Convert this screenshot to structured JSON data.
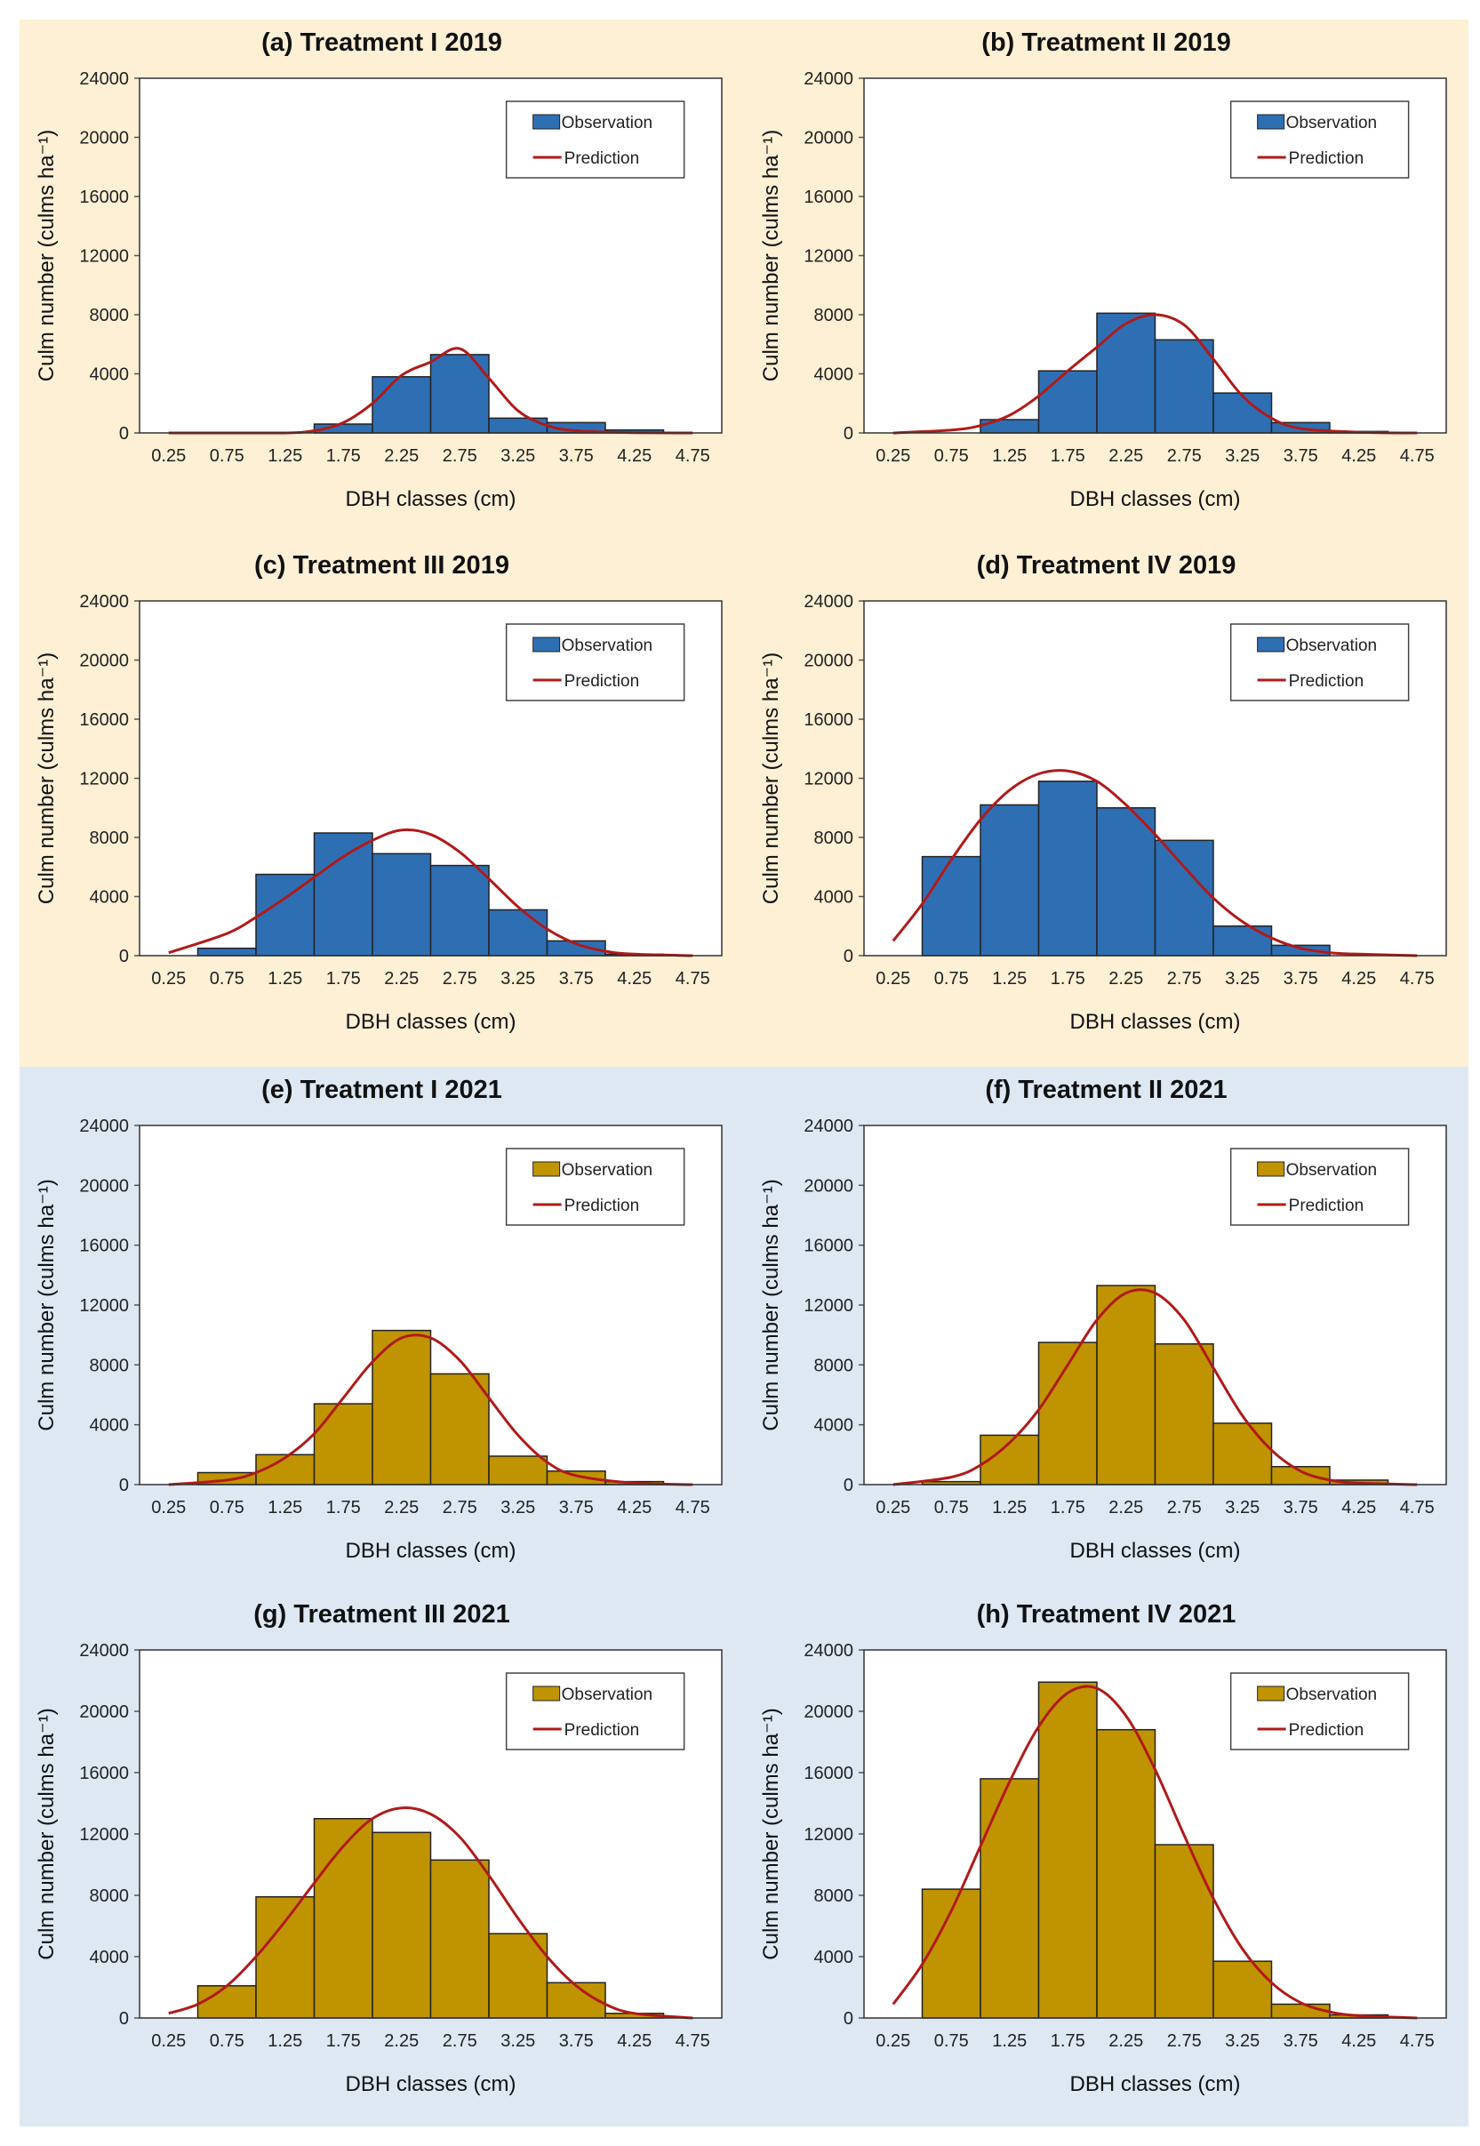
{
  "colors": {
    "bg_2019": "#fdf0d5",
    "bg_2021": "#dde8f3",
    "obs_2019": "#2e6fb4",
    "obs_2021": "#bf9400",
    "prediction": "#b01a1a"
  },
  "legend": {
    "observation": "Observation",
    "prediction": "Prediction"
  },
  "chart_data": [
    {
      "id": "a",
      "title": "(a) Treatment I 2019",
      "type": "bar",
      "xlabel": "DBH classes (cm)",
      "ylabel": "Culm number (culms ha⁻¹)",
      "ylim": [
        0,
        24000
      ],
      "yticks": [
        "0",
        "4000",
        "8000",
        "12000",
        "16000",
        "20000",
        "24000"
      ],
      "categories": [
        "0.25",
        "0.75",
        "1.25",
        "1.75",
        "2.25",
        "2.75",
        "3.25",
        "3.75",
        "4.25",
        "4.75"
      ],
      "series": [
        {
          "name": "Observation",
          "type": "bar",
          "values": [
            0,
            0,
            0,
            600,
            3800,
            5300,
            1000,
            700,
            200,
            0
          ]
        },
        {
          "name": "Prediction",
          "type": "line",
          "x": [
            0.25,
            0.75,
            1.25,
            1.5,
            1.75,
            2.0,
            2.25,
            2.5,
            2.75,
            3.0,
            3.25,
            3.5,
            3.75,
            4.25,
            4.75
          ],
          "values": [
            0,
            0,
            0,
            150,
            700,
            2000,
            3900,
            4800,
            5700,
            3700,
            1500,
            500,
            150,
            20,
            0
          ]
        }
      ]
    },
    {
      "id": "b",
      "title": "(b) Treatment II 2019",
      "type": "bar",
      "xlabel": "DBH classes (cm)",
      "ylabel": "Culm number (culms ha⁻¹)",
      "ylim": [
        0,
        24000
      ],
      "yticks": [
        "0",
        "4000",
        "8000",
        "12000",
        "16000",
        "20000",
        "24000"
      ],
      "categories": [
        "0.25",
        "0.75",
        "1.25",
        "1.75",
        "2.25",
        "2.75",
        "3.25",
        "3.75",
        "4.25",
        "4.75"
      ],
      "series": [
        {
          "name": "Observation",
          "type": "bar",
          "values": [
            0,
            0,
            900,
            4200,
            8100,
            6300,
            2700,
            700,
            100,
            0
          ]
        },
        {
          "name": "Prediction",
          "type": "line",
          "x": [
            0.25,
            0.75,
            1.0,
            1.25,
            1.5,
            1.75,
            2.0,
            2.25,
            2.5,
            2.75,
            3.0,
            3.25,
            3.5,
            3.75,
            4.25,
            4.75
          ],
          "values": [
            0,
            200,
            500,
            1200,
            2500,
            4200,
            5800,
            7400,
            8000,
            7300,
            5000,
            2500,
            1000,
            300,
            50,
            0
          ]
        }
      ]
    },
    {
      "id": "c",
      "title": "(c) Treatment III 2019",
      "type": "bar",
      "xlabel": "DBH classes (cm)",
      "ylabel": "Culm number (culms ha⁻¹)",
      "ylim": [
        0,
        24000
      ],
      "yticks": [
        "0",
        "4000",
        "8000",
        "12000",
        "16000",
        "20000",
        "24000"
      ],
      "categories": [
        "0.25",
        "0.75",
        "1.25",
        "1.75",
        "2.25",
        "2.75",
        "3.25",
        "3.75",
        "4.25",
        "4.75"
      ],
      "series": [
        {
          "name": "Observation",
          "type": "bar",
          "values": [
            0,
            500,
            5500,
            8300,
            6900,
            6100,
            3100,
            1000,
            100,
            0
          ]
        },
        {
          "name": "Prediction",
          "type": "line",
          "x": [
            0.25,
            0.75,
            1.0,
            1.25,
            1.5,
            1.75,
            2.0,
            2.25,
            2.5,
            2.75,
            3.0,
            3.25,
            3.5,
            3.75,
            4.0,
            4.25,
            4.75
          ],
          "values": [
            200,
            1500,
            2600,
            3900,
            5300,
            6700,
            7800,
            8500,
            8200,
            7000,
            5200,
            3300,
            1800,
            800,
            300,
            100,
            0
          ]
        }
      ]
    },
    {
      "id": "d",
      "title": "(d) Treatment IV 2019",
      "type": "bar",
      "xlabel": "DBH classes (cm)",
      "ylabel": "Culm number (culms ha⁻¹)",
      "ylim": [
        0,
        24000
      ],
      "yticks": [
        "0",
        "4000",
        "8000",
        "12000",
        "16000",
        "20000",
        "24000"
      ],
      "categories": [
        "0.25",
        "0.75",
        "1.25",
        "1.75",
        "2.25",
        "2.75",
        "3.25",
        "3.75",
        "4.25",
        "4.75"
      ],
      "series": [
        {
          "name": "Observation",
          "type": "bar",
          "values": [
            0,
            6700,
            10200,
            11800,
            10000,
            7800,
            2000,
            700,
            0,
            0
          ]
        },
        {
          "name": "Prediction",
          "type": "line",
          "x": [
            0.25,
            0.5,
            0.75,
            1.0,
            1.25,
            1.5,
            1.75,
            2.0,
            2.25,
            2.5,
            2.75,
            3.0,
            3.25,
            3.5,
            3.75,
            4.0,
            4.25,
            4.75
          ],
          "values": [
            1000,
            3500,
            6500,
            9200,
            11200,
            12300,
            12500,
            11800,
            10200,
            8200,
            6000,
            3900,
            2300,
            1200,
            500,
            200,
            100,
            0
          ]
        }
      ]
    },
    {
      "id": "e",
      "title": "(e) Treatment I 2021",
      "type": "bar",
      "xlabel": "DBH classes (cm)",
      "ylabel": "Culm number (culms ha⁻¹)",
      "ylim": [
        0,
        24000
      ],
      "yticks": [
        "0",
        "4000",
        "8000",
        "12000",
        "16000",
        "20000",
        "24000"
      ],
      "categories": [
        "0.25",
        "0.75",
        "1.25",
        "1.75",
        "2.25",
        "2.75",
        "3.25",
        "3.75",
        "4.25",
        "4.75"
      ],
      "series": [
        {
          "name": "Observation",
          "type": "bar",
          "values": [
            0,
            800,
            2000,
            5400,
            10300,
            7400,
            1900,
            900,
            200,
            0
          ]
        },
        {
          "name": "Prediction",
          "type": "line",
          "x": [
            0.25,
            0.75,
            1.0,
            1.25,
            1.5,
            1.75,
            2.0,
            2.25,
            2.5,
            2.75,
            3.0,
            3.25,
            3.5,
            3.75,
            4.25,
            4.75
          ],
          "values": [
            0,
            300,
            800,
            1800,
            3400,
            5800,
            8200,
            9800,
            9800,
            8300,
            5800,
            3300,
            1500,
            600,
            100,
            0
          ]
        }
      ]
    },
    {
      "id": "f",
      "title": "(f) Treatment II 2021",
      "type": "bar",
      "xlabel": "DBH classes (cm)",
      "ylabel": "Culm number (culms ha⁻¹)",
      "ylim": [
        0,
        24000
      ],
      "yticks": [
        "0",
        "4000",
        "8000",
        "12000",
        "16000",
        "20000",
        "24000"
      ],
      "categories": [
        "0.25",
        "0.75",
        "1.25",
        "1.75",
        "2.25",
        "2.75",
        "3.25",
        "3.75",
        "4.25",
        "4.75"
      ],
      "series": [
        {
          "name": "Observation",
          "type": "bar",
          "values": [
            0,
            200,
            3300,
            9500,
            13300,
            9400,
            4100,
            1200,
            300,
            0
          ]
        },
        {
          "name": "Prediction",
          "type": "line",
          "x": [
            0.25,
            0.75,
            1.0,
            1.25,
            1.5,
            1.75,
            2.0,
            2.25,
            2.5,
            2.75,
            3.0,
            3.25,
            3.5,
            3.75,
            4.0,
            4.25,
            4.75
          ],
          "values": [
            0,
            500,
            1300,
            2800,
            5000,
            8000,
            11000,
            12800,
            12800,
            11000,
            7800,
            4600,
            2300,
            900,
            300,
            100,
            0
          ]
        }
      ]
    },
    {
      "id": "g",
      "title": "(g) Treatment III 2021",
      "type": "bar",
      "xlabel": "DBH classes (cm)",
      "ylabel": "Culm number (culms ha⁻¹)",
      "ylim": [
        0,
        24000
      ],
      "yticks": [
        "0",
        "4000",
        "8000",
        "12000",
        "16000",
        "20000",
        "24000"
      ],
      "categories": [
        "0.25",
        "0.75",
        "1.25",
        "1.75",
        "2.25",
        "2.75",
        "3.25",
        "3.75",
        "4.25",
        "4.75"
      ],
      "series": [
        {
          "name": "Observation",
          "type": "bar",
          "values": [
            0,
            2100,
            7900,
            13000,
            12100,
            10300,
            5500,
            2300,
            300,
            0
          ]
        },
        {
          "name": "Prediction",
          "type": "line",
          "x": [
            0.25,
            0.5,
            0.75,
            1.0,
            1.25,
            1.5,
            1.75,
            2.0,
            2.25,
            2.5,
            2.75,
            3.0,
            3.25,
            3.5,
            3.75,
            4.0,
            4.25,
            4.75
          ],
          "values": [
            300,
            900,
            2100,
            4000,
            6300,
            8800,
            11200,
            13000,
            13700,
            13300,
            11800,
            9300,
            6500,
            4000,
            2100,
            900,
            300,
            0
          ]
        }
      ]
    },
    {
      "id": "h",
      "title": "(h) Treatment IV 2021",
      "type": "bar",
      "xlabel": "DBH classes (cm)",
      "ylabel": "Culm number (culms ha⁻¹)",
      "ylim": [
        0,
        24000
      ],
      "yticks": [
        "0",
        "4000",
        "8000",
        "12000",
        "16000",
        "20000",
        "24000"
      ],
      "categories": [
        "0.25",
        "0.75",
        "1.25",
        "1.75",
        "2.25",
        "2.75",
        "3.25",
        "3.75",
        "4.25",
        "4.75"
      ],
      "series": [
        {
          "name": "Observation",
          "type": "bar",
          "values": [
            0,
            8400,
            15600,
            21900,
            18800,
            11300,
            3700,
            900,
            200,
            0
          ]
        },
        {
          "name": "Prediction",
          "type": "line",
          "x": [
            0.25,
            0.5,
            0.75,
            1.0,
            1.25,
            1.5,
            1.75,
            2.0,
            2.25,
            2.5,
            2.75,
            3.0,
            3.25,
            3.5,
            3.75,
            4.0,
            4.25,
            4.75
          ],
          "values": [
            900,
            3500,
            7000,
            11200,
            15400,
            19000,
            21200,
            21500,
            19700,
            16200,
            11900,
            7800,
            4500,
            2300,
            1000,
            400,
            150,
            0
          ]
        }
      ]
    }
  ]
}
